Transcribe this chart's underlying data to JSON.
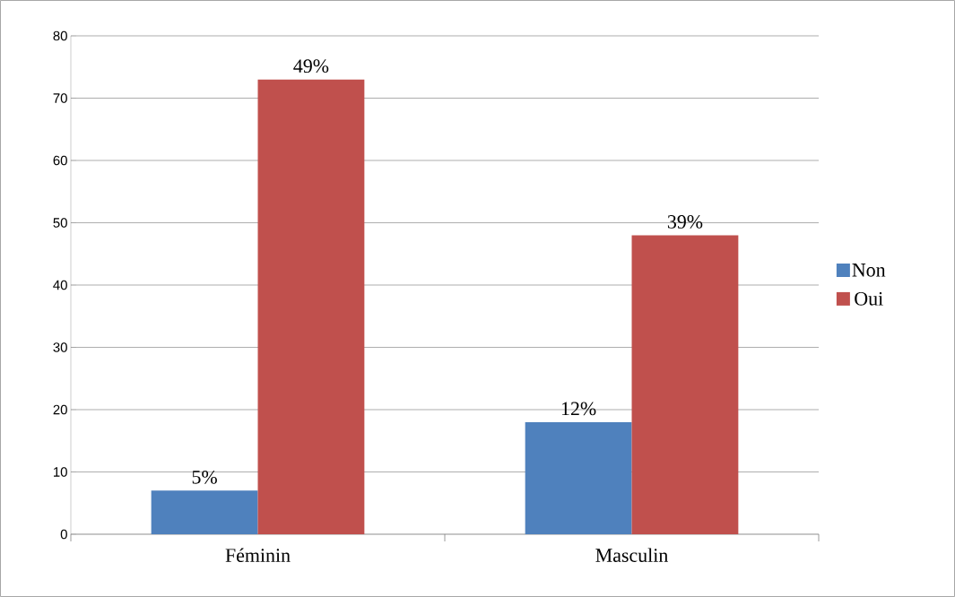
{
  "chart_data": {
    "type": "bar",
    "categories": [
      "Féminin",
      "Masculin"
    ],
    "series": [
      {
        "name": "Non",
        "color": "#4f81bd",
        "values": [
          7,
          18
        ]
      },
      {
        "name": "Oui",
        "color": "#c0504d",
        "values": [
          73,
          48
        ]
      }
    ],
    "annotations": [
      {
        "text": "5%",
        "x": "Féminin",
        "y": 7
      },
      {
        "text": "12%",
        "x": "Masculin",
        "y": 18
      },
      {
        "text": "49%",
        "x": "Féminin",
        "y": 73
      },
      {
        "text": "39%",
        "x": "Masculin",
        "y": 48
      }
    ],
    "ylim": [
      0,
      80
    ],
    "yticks": [
      0,
      10,
      20,
      30,
      40,
      50,
      60,
      70,
      80
    ],
    "grid": "y",
    "legend": "right"
  }
}
